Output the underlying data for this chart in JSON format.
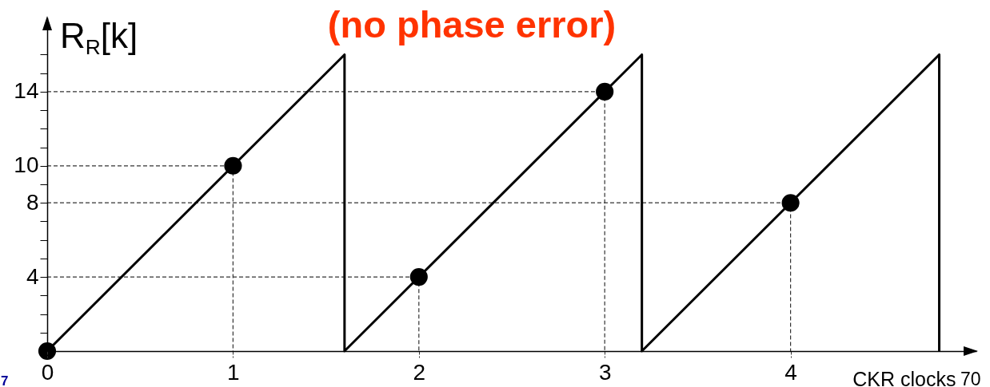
{
  "chart_data": {
    "type": "line",
    "title": "(no phase error)",
    "xlabel": "CKR clocks",
    "ylabel": "R$_{R}$[k]",
    "xlim": [
      0,
      5
    ],
    "ylim": [
      0,
      18
    ],
    "xticks": [
      0,
      1,
      2,
      3,
      4
    ],
    "yticks": [
      {
        "value": 1,
        "label": null
      },
      {
        "value": 2,
        "label": null
      },
      {
        "value": 3,
        "label": null
      },
      4,
      {
        "value": 5,
        "label": null
      },
      {
        "value": 6,
        "label": null
      },
      {
        "value": 7,
        "label": null
      },
      8,
      {
        "value": 9,
        "label": null
      },
      10,
      {
        "value": 11,
        "label": null
      },
      {
        "value": 12,
        "label": null
      },
      {
        "value": 13,
        "label": null
      },
      14,
      {
        "value": 15,
        "label": null
      },
      {
        "value": 16,
        "label": null
      }
    ],
    "series": [
      {
        "color": "#333333",
        "line_style": "dashed",
        "marker": "none",
        "x": [
          0,
          1,
          1
        ],
        "values": [
          10,
          10,
          0
        ]
      },
      {
        "color": "#333333",
        "line_style": "dashed",
        "marker": "none",
        "x": [
          0,
          2,
          2
        ],
        "values": [
          4,
          4,
          0
        ]
      },
      {
        "color": "#333333",
        "line_style": "dashed",
        "marker": "none",
        "x": [
          0,
          3,
          3
        ],
        "values": [
          14,
          14,
          0
        ]
      },
      {
        "color": "#333333",
        "line_style": "dashed",
        "marker": "none",
        "x": [
          0,
          4,
          4
        ],
        "values": [
          8,
          8,
          0
        ]
      },
      {
        "color": "#000000",
        "line_style": "solid",
        "marker": "none",
        "x": [
          0,
          1.6,
          1.6,
          3.2,
          3.2,
          4.8,
          4.8
        ],
        "values": [
          0,
          16,
          0,
          16,
          0,
          16,
          0
        ]
      },
      {
        "type": "scatter",
        "color": "#000000",
        "marker": "circle",
        "x": [
          0,
          1,
          2,
          3,
          4
        ],
        "values": [
          0,
          10,
          4,
          14,
          8
        ]
      }
    ],
    "annotations": [
      "7",
      "70"
    ]
  }
}
